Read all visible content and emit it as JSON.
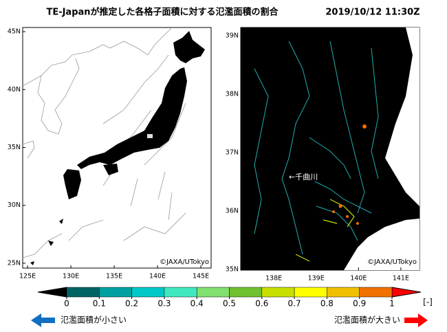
{
  "title": "TE-Japanが推定した各格子面積に対する氾濫面積の割合",
  "datetime": "2019/10/12 11:30Z",
  "left_map": {
    "xlim": [
      124.44,
      146.19
    ],
    "ylim": [
      24.58,
      45.36
    ],
    "xticks": [
      {
        "value": 125,
        "label": "125E"
      },
      {
        "value": 130,
        "label": "130E"
      },
      {
        "value": 135,
        "label": "135E"
      },
      {
        "value": 140,
        "label": "140E"
      },
      {
        "value": 145,
        "label": "145E"
      }
    ],
    "yticks": [
      {
        "value": 25,
        "label": "25N"
      },
      {
        "value": 30,
        "label": "30N"
      },
      {
        "value": 35,
        "label": "35N"
      },
      {
        "value": 40,
        "label": "40N"
      },
      {
        "value": 45,
        "label": "45N"
      }
    ],
    "credit": "©JAXA/UTokyo"
  },
  "right_map": {
    "xlim": [
      137.22,
      141.44
    ],
    "ylim": [
      34.99,
      39.14
    ],
    "xticks": [
      {
        "value": 138,
        "label": "138E"
      },
      {
        "value": 139,
        "label": "139E"
      },
      {
        "value": 140,
        "label": "140E"
      },
      {
        "value": 141,
        "label": "141E"
      }
    ],
    "yticks": [
      {
        "value": 35,
        "label": "35N"
      },
      {
        "value": 36,
        "label": "36N"
      },
      {
        "value": 37,
        "label": "37N"
      },
      {
        "value": 38,
        "label": "38N"
      },
      {
        "value": 39,
        "label": "39N"
      }
    ],
    "annotation": "←千曲川",
    "credit": "©JAXA/UTokyo"
  },
  "colorbar": {
    "ticks": [
      0,
      0.1,
      0.2,
      0.3,
      0.4,
      0.5,
      0.6,
      0.7,
      0.8,
      0.9,
      1
    ],
    "colors": [
      "#006464",
      "#00a0a0",
      "#00c8c8",
      "#40e8c0",
      "#80e070",
      "#70c030",
      "#c8e000",
      "#ffff00",
      "#f0c000",
      "#f07000"
    ],
    "under_color": "#000000",
    "over_color": "#ff0000",
    "unit": "[-]"
  },
  "legend": {
    "small": "氾濫面積が小さい",
    "large": "氾濫面積が大きい"
  }
}
